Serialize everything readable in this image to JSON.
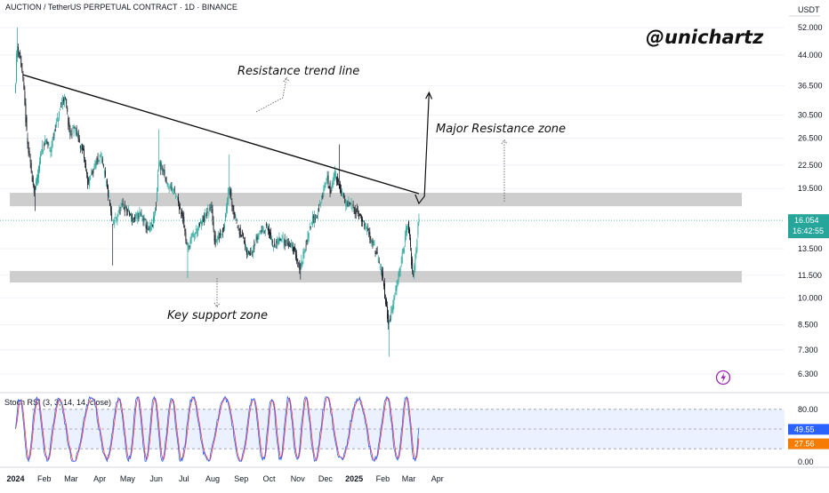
{
  "header": {
    "title": "AUCTION / TetherUS PERPETUAL CONTRACT · 1D · BINANCE",
    "currency": "USDT"
  },
  "brand": {
    "handle": "@unichartz"
  },
  "colors": {
    "up": "#26a69a",
    "down": "#131722",
    "zone": "#bdbdbd",
    "rsi_k": "#2962ff",
    "rsi_d": "#f23645",
    "price_tag_bg": "#26a69a",
    "k_tag_bg": "#2962ff",
    "d_tag_bg": "#f57c00",
    "lightning": "#9c27b0"
  },
  "annotations": {
    "resistance_trend_line": "Resistance trend line",
    "major_resistance_zone": "Major Resistance zone",
    "key_support_zone": "Key support zone"
  },
  "price_tags": {
    "last_price": "16.054",
    "countdown": "16:42:55"
  },
  "rsi": {
    "label": "Stoch RSI (3, 3, 14, 14, close)",
    "ticks": [
      "80.00",
      "0.00"
    ],
    "k_value": "49.55",
    "d_value": "27.56"
  },
  "icons": {
    "lightning": "lightning-icon"
  },
  "chart_data": {
    "type": "candlestick",
    "scale": "log",
    "y_axis_ticks": [
      "52.000",
      "44.000",
      "36.500",
      "30.500",
      "26.500",
      "22.500",
      "19.500",
      "16.054",
      "13.500",
      "11.500",
      "10.000",
      "8.500",
      "7.300",
      "6.300"
    ],
    "x_axis_ticks": [
      "2024",
      "Feb",
      "Mar",
      "Apr",
      "May",
      "Jun",
      "Jul",
      "Aug",
      "Sep",
      "Oct",
      "Nov",
      "Dec",
      "2025",
      "Feb",
      "Mar",
      "Apr"
    ],
    "ylim": [
      5.8,
      56
    ],
    "resistance_zone": [
      17.5,
      19.0
    ],
    "support_zone": [
      11.0,
      11.8
    ],
    "trend_line": {
      "from": [
        "2024-01-09",
        39.0
      ],
      "to": [
        "2025-03-12",
        18.9
      ]
    },
    "projection": [
      [
        "2025-03-08",
        18.8
      ],
      [
        "2025-03-12",
        17.8
      ],
      [
        "2025-03-18",
        18.6
      ],
      [
        "2025-03-23",
        35.0
      ]
    ],
    "price_path": [
      [
        "2024-01-01",
        35
      ],
      [
        "2024-01-03",
        47
      ],
      [
        "2024-01-06",
        44
      ],
      [
        "2024-01-09",
        39
      ],
      [
        "2024-01-12",
        31
      ],
      [
        "2024-01-14",
        26
      ],
      [
        "2024-01-18",
        22
      ],
      [
        "2024-01-22",
        19
      ],
      [
        "2024-01-26",
        21.5
      ],
      [
        "2024-01-30",
        25
      ],
      [
        "2024-02-04",
        26
      ],
      [
        "2024-02-08",
        24.5
      ],
      [
        "2024-02-13",
        28
      ],
      [
        "2024-02-18",
        31
      ],
      [
        "2024-02-22",
        34
      ],
      [
        "2024-02-25",
        33
      ],
      [
        "2024-02-29",
        27
      ],
      [
        "2024-03-05",
        28.5
      ],
      [
        "2024-03-10",
        26
      ],
      [
        "2024-03-15",
        24
      ],
      [
        "2024-03-20",
        20
      ],
      [
        "2024-03-27",
        22.5
      ],
      [
        "2024-04-02",
        24
      ],
      [
        "2024-04-07",
        21
      ],
      [
        "2024-04-12",
        18
      ],
      [
        "2024-04-15",
        15.5
      ],
      [
        "2024-04-20",
        16.5
      ],
      [
        "2024-04-26",
        17.5
      ],
      [
        "2024-05-02",
        17
      ],
      [
        "2024-05-08",
        16
      ],
      [
        "2024-05-14",
        16.8
      ],
      [
        "2024-05-19",
        16.2
      ],
      [
        "2024-05-24",
        15
      ],
      [
        "2024-05-29",
        15.8
      ],
      [
        "2024-06-02",
        18
      ],
      [
        "2024-06-04",
        23
      ],
      [
        "2024-06-08",
        22
      ],
      [
        "2024-06-13",
        20
      ],
      [
        "2024-06-20",
        19.5
      ],
      [
        "2024-06-25",
        18
      ],
      [
        "2024-06-30",
        16.5
      ],
      [
        "2024-07-05",
        13.5
      ],
      [
        "2024-07-10",
        14.5
      ],
      [
        "2024-07-18",
        15.5
      ],
      [
        "2024-07-25",
        16.5
      ],
      [
        "2024-07-31",
        17.5
      ],
      [
        "2024-08-04",
        14
      ],
      [
        "2024-08-08",
        14.5
      ],
      [
        "2024-08-14",
        15.5
      ],
      [
        "2024-08-19",
        20
      ],
      [
        "2024-08-23",
        17.5
      ],
      [
        "2024-08-28",
        15.5
      ],
      [
        "2024-09-03",
        14.5
      ],
      [
        "2024-09-08",
        13
      ],
      [
        "2024-09-14",
        13.5
      ],
      [
        "2024-09-21",
        15
      ],
      [
        "2024-09-29",
        15.5
      ],
      [
        "2024-10-06",
        13.8
      ],
      [
        "2024-10-13",
        14.3
      ],
      [
        "2024-10-22",
        14
      ],
      [
        "2024-10-28",
        13.5
      ],
      [
        "2024-11-04",
        12
      ],
      [
        "2024-11-10",
        13.8
      ],
      [
        "2024-11-16",
        16
      ],
      [
        "2024-11-22",
        16.5
      ],
      [
        "2024-11-28",
        18.5
      ],
      [
        "2024-12-03",
        21
      ],
      [
        "2024-12-07",
        19
      ],
      [
        "2024-12-11",
        21.5
      ],
      [
        "2024-12-16",
        20
      ],
      [
        "2024-12-22",
        18
      ],
      [
        "2024-12-29",
        17.5
      ],
      [
        "2025-01-04",
        17
      ],
      [
        "2025-01-10",
        16
      ],
      [
        "2025-01-16",
        15
      ],
      [
        "2025-01-22",
        14
      ],
      [
        "2025-01-28",
        12.5
      ],
      [
        "2025-02-02",
        11
      ],
      [
        "2025-02-05",
        9.5
      ],
      [
        "2025-02-08",
        8.5
      ],
      [
        "2025-02-12",
        9.5
      ],
      [
        "2025-02-18",
        11.5
      ],
      [
        "2025-02-24",
        13.5
      ],
      [
        "2025-02-28",
        16
      ],
      [
        "2025-03-03",
        14
      ],
      [
        "2025-03-05",
        12
      ],
      [
        "2025-03-07",
        11.5
      ],
      [
        "2025-03-10",
        14
      ],
      [
        "2025-03-12",
        16.05
      ]
    ],
    "spikes": [
      [
        "2024-01-03",
        52.0
      ],
      [
        "2024-01-22",
        17.0
      ],
      [
        "2024-06-04",
        28.0
      ],
      [
        "2024-08-19",
        24.0
      ],
      [
        "2024-12-16",
        25.5
      ],
      [
        "2024-04-15",
        12.2
      ],
      [
        "2024-07-05",
        11.3
      ],
      [
        "2025-02-08",
        7.0
      ],
      [
        "2024-11-04",
        11.2
      ]
    ],
    "stoch_rsi_range": [
      0,
      100
    ],
    "stoch_rsi_band": [
      20,
      80
    ]
  }
}
